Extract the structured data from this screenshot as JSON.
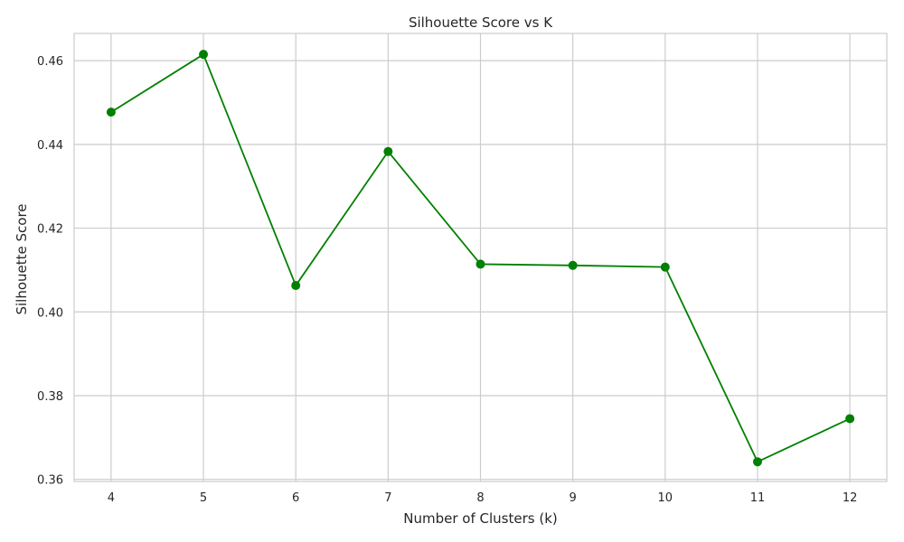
{
  "chart_data": {
    "type": "line",
    "title": "Silhouette Score vs K",
    "xlabel": "Number of Clusters (k)",
    "ylabel": "Silhouette Score",
    "x": [
      4,
      5,
      6,
      7,
      8,
      9,
      10,
      11,
      12
    ],
    "x_tick_labels": [
      "4",
      "5",
      "6",
      "7",
      "8",
      "9",
      "10",
      "11",
      "12"
    ],
    "y_ticks": [
      0.36,
      0.38,
      0.4,
      0.42,
      0.44,
      0.46
    ],
    "y_tick_labels": [
      "0.36",
      "0.38",
      "0.40",
      "0.42",
      "0.44",
      "0.46"
    ],
    "series": [
      {
        "values": [
          0.4477,
          0.4615,
          0.4063,
          0.4383,
          0.4114,
          0.4111,
          0.4107,
          0.3642,
          0.3745
        ],
        "color": "#008000",
        "marker": "circle"
      }
    ],
    "xlim": [
      3.6,
      12.4
    ],
    "ylim": [
      0.3595,
      0.4665
    ],
    "grid": true,
    "background": "#ffffff",
    "grid_color": "#cccccc"
  }
}
